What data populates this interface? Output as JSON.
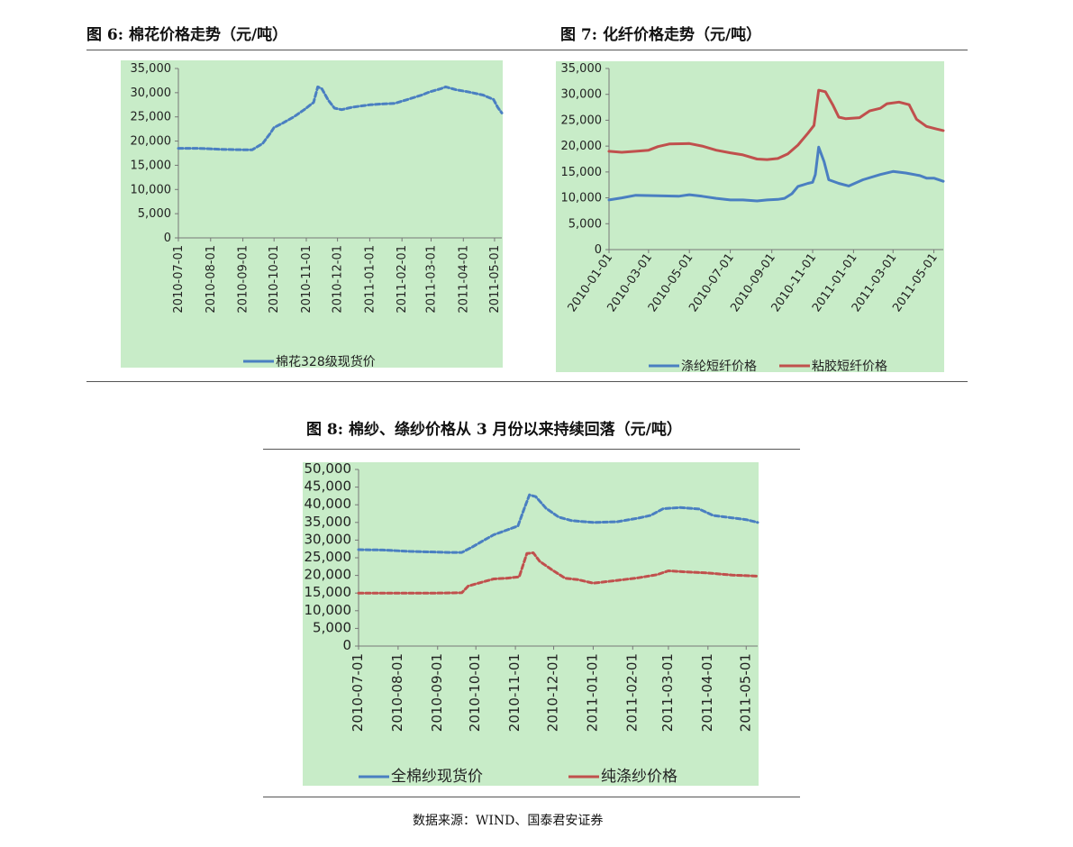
{
  "figures": {
    "fig6_title": "图 6:  棉花价格走势（元/吨）",
    "fig7_title": "图 7:  化纤价格走势（元/吨）",
    "fig8_title": "图 8:  棉纱、绦纱价格从 3 月份以来持续回落（元/吨）"
  },
  "source": "数据来源：WIND、国泰君安证券",
  "colors": {
    "blue": "#4a7fc1",
    "red": "#c0504d",
    "panel_bg": "#c8ecc8"
  },
  "chart_data": [
    {
      "id": "fig6",
      "type": "line",
      "ylim": [
        0,
        35000
      ],
      "yticks": [
        "0",
        "5,000",
        "10,000",
        "15,000",
        "20,000",
        "25,000",
        "30,000",
        "35,000"
      ],
      "xlim": [
        "2010-07-01",
        "2011-05-08"
      ],
      "xticks": [
        "2010-07-01",
        "2010-08-01",
        "2010-09-01",
        "2010-10-01",
        "2010-11-01",
        "2010-12-01",
        "2011-01-01",
        "2011-02-01",
        "2011-03-01",
        "2011-04-01",
        "2011-05-01"
      ],
      "legend": "bottom",
      "series": [
        {
          "name": "棉花328级现货价",
          "color": "#4a7fc1",
          "style": "dashed",
          "points": [
            [
              "2010-07-01",
              18500
            ],
            [
              "2010-07-20",
              18500
            ],
            [
              "2010-08-10",
              18300
            ],
            [
              "2010-08-31",
              18200
            ],
            [
              "2010-09-10",
              18200
            ],
            [
              "2010-09-20",
              19500
            ],
            [
              "2010-09-27",
              21500
            ],
            [
              "2010-10-01",
              22800
            ],
            [
              "2010-10-10",
              23800
            ],
            [
              "2010-10-20",
              25000
            ],
            [
              "2010-10-30",
              26500
            ],
            [
              "2010-11-08",
              28000
            ],
            [
              "2010-11-12",
              31200
            ],
            [
              "2010-11-16",
              30800
            ],
            [
              "2010-11-22",
              28500
            ],
            [
              "2010-11-28",
              26800
            ],
            [
              "2010-12-05",
              26500
            ],
            [
              "2010-12-15",
              27000
            ],
            [
              "2011-01-01",
              27500
            ],
            [
              "2011-01-15",
              27700
            ],
            [
              "2011-01-25",
              27800
            ],
            [
              "2011-02-05",
              28500
            ],
            [
              "2011-02-20",
              29500
            ],
            [
              "2011-02-28",
              30200
            ],
            [
              "2011-03-10",
              30800
            ],
            [
              "2011-03-15",
              31200
            ],
            [
              "2011-03-25",
              30600
            ],
            [
              "2011-04-05",
              30200
            ],
            [
              "2011-04-20",
              29500
            ],
            [
              "2011-04-30",
              28600
            ],
            [
              "2011-05-04",
              27000
            ],
            [
              "2011-05-08",
              25800
            ]
          ]
        }
      ]
    },
    {
      "id": "fig7",
      "type": "line",
      "ylim": [
        0,
        35000
      ],
      "yticks": [
        "0",
        "5,000",
        "10,000",
        "15,000",
        "20,000",
        "25,000",
        "30,000",
        "35,000"
      ],
      "xlim": [
        "2010-01-01",
        "2011-05-15"
      ],
      "xticks": [
        "2010-01-01",
        "2010-03-01",
        "2010-05-01",
        "2010-07-01",
        "2010-09-01",
        "2010-11-01",
        "2011-01-01",
        "2011-03-01",
        "2011-05-01"
      ],
      "legend": "bottom",
      "series": [
        {
          "name": "涤纶短纤价格",
          "color": "#4a7fc1",
          "style": "solid",
          "points": [
            [
              "2010-01-01",
              9600
            ],
            [
              "2010-01-20",
              10000
            ],
            [
              "2010-02-10",
              10500
            ],
            [
              "2010-03-15",
              10400
            ],
            [
              "2010-04-15",
              10300
            ],
            [
              "2010-05-01",
              10600
            ],
            [
              "2010-05-20",
              10300
            ],
            [
              "2010-06-10",
              9900
            ],
            [
              "2010-07-01",
              9600
            ],
            [
              "2010-07-20",
              9600
            ],
            [
              "2010-08-10",
              9400
            ],
            [
              "2010-08-25",
              9600
            ],
            [
              "2010-09-10",
              9700
            ],
            [
              "2010-09-20",
              9900
            ],
            [
              "2010-10-01",
              10800
            ],
            [
              "2010-10-10",
              12200
            ],
            [
              "2010-10-25",
              12800
            ],
            [
              "2010-11-01",
              13000
            ],
            [
              "2010-11-05",
              14500
            ],
            [
              "2010-11-10",
              19800
            ],
            [
              "2010-11-18",
              17000
            ],
            [
              "2010-11-25",
              13500
            ],
            [
              "2010-12-10",
              12800
            ],
            [
              "2010-12-25",
              12300
            ],
            [
              "2011-01-15",
              13500
            ],
            [
              "2011-02-10",
              14500
            ],
            [
              "2011-03-01",
              15100
            ],
            [
              "2011-03-20",
              14800
            ],
            [
              "2011-04-10",
              14300
            ],
            [
              "2011-04-20",
              13800
            ],
            [
              "2011-05-01",
              13800
            ],
            [
              "2011-05-15",
              13200
            ]
          ]
        },
        {
          "name": "粘胶短纤价格",
          "color": "#c0504d",
          "style": "solid",
          "points": [
            [
              "2010-01-01",
              19000
            ],
            [
              "2010-01-20",
              18800
            ],
            [
              "2010-02-10",
              19000
            ],
            [
              "2010-03-01",
              19200
            ],
            [
              "2010-03-15",
              19900
            ],
            [
              "2010-04-01",
              20400
            ],
            [
              "2010-05-01",
              20500
            ],
            [
              "2010-05-20",
              20000
            ],
            [
              "2010-06-10",
              19200
            ],
            [
              "2010-07-01",
              18700
            ],
            [
              "2010-07-20",
              18300
            ],
            [
              "2010-08-10",
              17500
            ],
            [
              "2010-08-25",
              17400
            ],
            [
              "2010-09-10",
              17600
            ],
            [
              "2010-09-25",
              18500
            ],
            [
              "2010-10-10",
              20200
            ],
            [
              "2010-10-25",
              22500
            ],
            [
              "2010-11-03",
              24000
            ],
            [
              "2010-11-10",
              30800
            ],
            [
              "2010-11-20",
              30500
            ],
            [
              "2010-12-01",
              28000
            ],
            [
              "2010-12-10",
              25600
            ],
            [
              "2010-12-20",
              25300
            ],
            [
              "2011-01-10",
              25500
            ],
            [
              "2011-01-25",
              26800
            ],
            [
              "2011-02-10",
              27300
            ],
            [
              "2011-02-20",
              28200
            ],
            [
              "2011-03-10",
              28500
            ],
            [
              "2011-03-25",
              28000
            ],
            [
              "2011-04-05",
              25200
            ],
            [
              "2011-04-20",
              23800
            ],
            [
              "2011-05-05",
              23300
            ],
            [
              "2011-05-15",
              23000
            ]
          ]
        }
      ]
    },
    {
      "id": "fig8",
      "type": "line",
      "ylim": [
        0,
        50000
      ],
      "yticks": [
        "0",
        "5,000",
        "10,000",
        "15,000",
        "20,000",
        "25,000",
        "30,000",
        "35,000",
        "40,000",
        "45,000",
        "50,000"
      ],
      "xlim": [
        "2010-07-01",
        "2011-05-10"
      ],
      "xticks": [
        "2010-07-01",
        "2010-08-01",
        "2010-09-01",
        "2010-10-01",
        "2010-11-01",
        "2010-12-01",
        "2011-01-01",
        "2011-02-01",
        "2011-03-01",
        "2011-04-01",
        "2011-05-01"
      ],
      "legend": "bottom",
      "series": [
        {
          "name": "全棉纱现货价",
          "color": "#4a7fc1",
          "style": "dashed",
          "points": [
            [
              "2010-07-01",
              27300
            ],
            [
              "2010-07-20",
              27200
            ],
            [
              "2010-08-10",
              26800
            ],
            [
              "2010-08-31",
              26600
            ],
            [
              "2010-09-10",
              26500
            ],
            [
              "2010-09-20",
              26500
            ],
            [
              "2010-09-28",
              28000
            ],
            [
              "2010-10-05",
              29500
            ],
            [
              "2010-10-15",
              31500
            ],
            [
              "2010-10-25",
              32800
            ],
            [
              "2010-11-03",
              34000
            ],
            [
              "2010-11-08",
              39000
            ],
            [
              "2010-11-12",
              42800
            ],
            [
              "2010-11-17",
              42300
            ],
            [
              "2010-11-25",
              39000
            ],
            [
              "2010-12-05",
              36500
            ],
            [
              "2010-12-15",
              35500
            ],
            [
              "2011-01-01",
              35000
            ],
            [
              "2011-01-20",
              35200
            ],
            [
              "2011-02-05",
              36200
            ],
            [
              "2011-02-15",
              37000
            ],
            [
              "2011-02-25",
              38900
            ],
            [
              "2011-03-10",
              39200
            ],
            [
              "2011-03-25",
              38800
            ],
            [
              "2011-04-05",
              37000
            ],
            [
              "2011-04-20",
              36300
            ],
            [
              "2011-05-01",
              35800
            ],
            [
              "2011-05-10",
              35000
            ]
          ]
        },
        {
          "name": "纯涤纱价格",
          "color": "#c0504d",
          "style": "dashed",
          "points": [
            [
              "2010-07-01",
              15000
            ],
            [
              "2010-07-20",
              15000
            ],
            [
              "2010-08-10",
              15000
            ],
            [
              "2010-08-31",
              15000
            ],
            [
              "2010-09-20",
              15100
            ],
            [
              "2010-09-25",
              17000
            ],
            [
              "2010-10-05",
              18000
            ],
            [
              "2010-10-15",
              19000
            ],
            [
              "2010-10-25",
              19200
            ],
            [
              "2010-11-04",
              19600
            ],
            [
              "2010-11-10",
              26200
            ],
            [
              "2010-11-15",
              26400
            ],
            [
              "2010-11-20",
              24000
            ],
            [
              "2010-11-30",
              21500
            ],
            [
              "2010-12-10",
              19200
            ],
            [
              "2010-12-20",
              18800
            ],
            [
              "2011-01-01",
              17800
            ],
            [
              "2011-01-20",
              18600
            ],
            [
              "2011-02-05",
              19300
            ],
            [
              "2011-02-20",
              20200
            ],
            [
              "2011-03-01",
              21300
            ],
            [
              "2011-03-15",
              21000
            ],
            [
              "2011-04-01",
              20700
            ],
            [
              "2011-04-20",
              20100
            ],
            [
              "2011-05-10",
              19800
            ]
          ]
        }
      ]
    }
  ]
}
